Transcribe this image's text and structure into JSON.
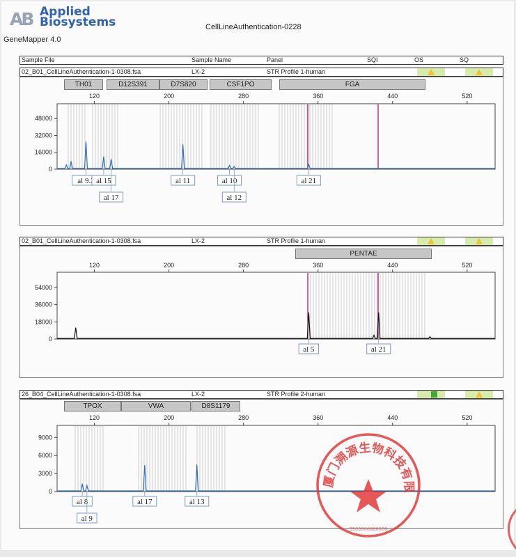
{
  "header": {
    "logo_mark": "AB",
    "logo_line1": "Applied",
    "logo_line2": "Biosystems",
    "app_name": "GeneMapper  4.0",
    "title": "CellLineAuthentication-0228"
  },
  "columns": {
    "sample_file": "Sample File",
    "sample_name": "Sample Name",
    "panel": "Panel",
    "sqi": "SQI",
    "os": "OS",
    "sq": "SQ"
  },
  "colors": {
    "blue_trace": "#2f6fb5",
    "black_trace": "#111111",
    "bin_line": "#c4c4c4",
    "magenta_marker": "#c0307d",
    "stamp_red": "#e23a3a",
    "status_yellow": "#f2c232",
    "status_green": "#41a838"
  },
  "status_icons": [
    "warning-triangle",
    "warning-triangle",
    "warning-triangle",
    "warning-triangle",
    "pass-square",
    "warning-triangle"
  ],
  "stamp": {
    "text": "厦门溯源生物科技有限公司",
    "serial": "3502000880000"
  },
  "chart_data": [
    {
      "type": "line",
      "sample_file": "02_B01_CellLineAuthentication-1-0308.fsa",
      "sample_name": "LX-2",
      "panel": "STR Profile 1-human",
      "markers": [
        "TH01",
        "D12S391",
        "D7S820",
        "CSF1PO",
        "FGA"
      ],
      "x_ticks": [
        "120",
        "200",
        "280",
        "360",
        "440",
        "520"
      ],
      "y_ticks": [
        "0",
        "16000",
        "32000",
        "48000"
      ],
      "xlim": [
        80,
        550
      ],
      "ylim": [
        0,
        62000
      ],
      "trace_color": "#2f6fb5",
      "peaks": [
        {
          "x": 90,
          "y": 4000
        },
        {
          "x": 95,
          "y": 7500
        },
        {
          "x": 111,
          "y": 26000
        },
        {
          "x": 130,
          "y": 12000
        },
        {
          "x": 138,
          "y": 9500
        },
        {
          "x": 215,
          "y": 23500
        },
        {
          "x": 265,
          "y": 3500
        },
        {
          "x": 270,
          "y": 2500
        },
        {
          "x": 350,
          "y": 4500
        }
      ],
      "alleles": [
        {
          "label": "al 9.3",
          "x": 111,
          "row": 0
        },
        {
          "label": "al 15",
          "x": 130,
          "row": 0
        },
        {
          "label": "al 17",
          "x": 138,
          "row": 1
        },
        {
          "label": "al 11",
          "x": 215,
          "row": 0
        },
        {
          "label": "al 10",
          "x": 265,
          "row": 0
        },
        {
          "label": "al 12",
          "x": 270,
          "row": 1
        },
        {
          "label": "al 21",
          "x": 350,
          "row": 0
        }
      ]
    },
    {
      "type": "line",
      "sample_file": "02_B01_CellLineAuthentication-1-0308.fsa",
      "sample_name": "LX-2",
      "panel": "STR Profile 1-human",
      "markers": [
        "PENTAE"
      ],
      "x_ticks": [
        "120",
        "200",
        "280",
        "360",
        "440",
        "520"
      ],
      "y_ticks": [
        "0",
        "18000",
        "36000",
        "54000"
      ],
      "xlim": [
        80,
        550
      ],
      "ylim": [
        0,
        70000
      ],
      "trace_color": "#111111",
      "peaks": [
        {
          "x": 100,
          "y": 12000
        },
        {
          "x": 350,
          "y": 28000
        },
        {
          "x": 425,
          "y": 28000
        },
        {
          "x": 420,
          "y": 4000
        },
        {
          "x": 480,
          "y": 2500
        }
      ],
      "alleles": [
        {
          "label": "al 5",
          "x": 350,
          "row": 0
        },
        {
          "label": "al 21",
          "x": 425,
          "row": 0
        }
      ]
    },
    {
      "type": "line",
      "sample_file": "26_B04_CellLineAuthentication-1-0308.fsa",
      "sample_name": "LX-2",
      "panel": "STR Profile 2-human",
      "markers": [
        "TPOX",
        "VWA",
        "D8S1179"
      ],
      "x_ticks": [
        "120",
        "200",
        "280",
        "360",
        "440",
        "520"
      ],
      "y_ticks": [
        "0",
        "3000",
        "6000",
        "9000"
      ],
      "xlim": [
        80,
        550
      ],
      "ylim": [
        0,
        11000
      ],
      "trace_color": "#2f6fb5",
      "peaks": [
        {
          "x": 107,
          "y": 1300
        },
        {
          "x": 112,
          "y": 1000
        },
        {
          "x": 174,
          "y": 4400
        },
        {
          "x": 230,
          "y": 4500
        }
      ],
      "alleles": [
        {
          "label": "al 8",
          "x": 107,
          "row": 0
        },
        {
          "label": "al 9",
          "x": 112,
          "row": 1
        },
        {
          "label": "al 17",
          "x": 174,
          "row": 0
        },
        {
          "label": "al 13",
          "x": 230,
          "row": 0
        }
      ]
    }
  ]
}
